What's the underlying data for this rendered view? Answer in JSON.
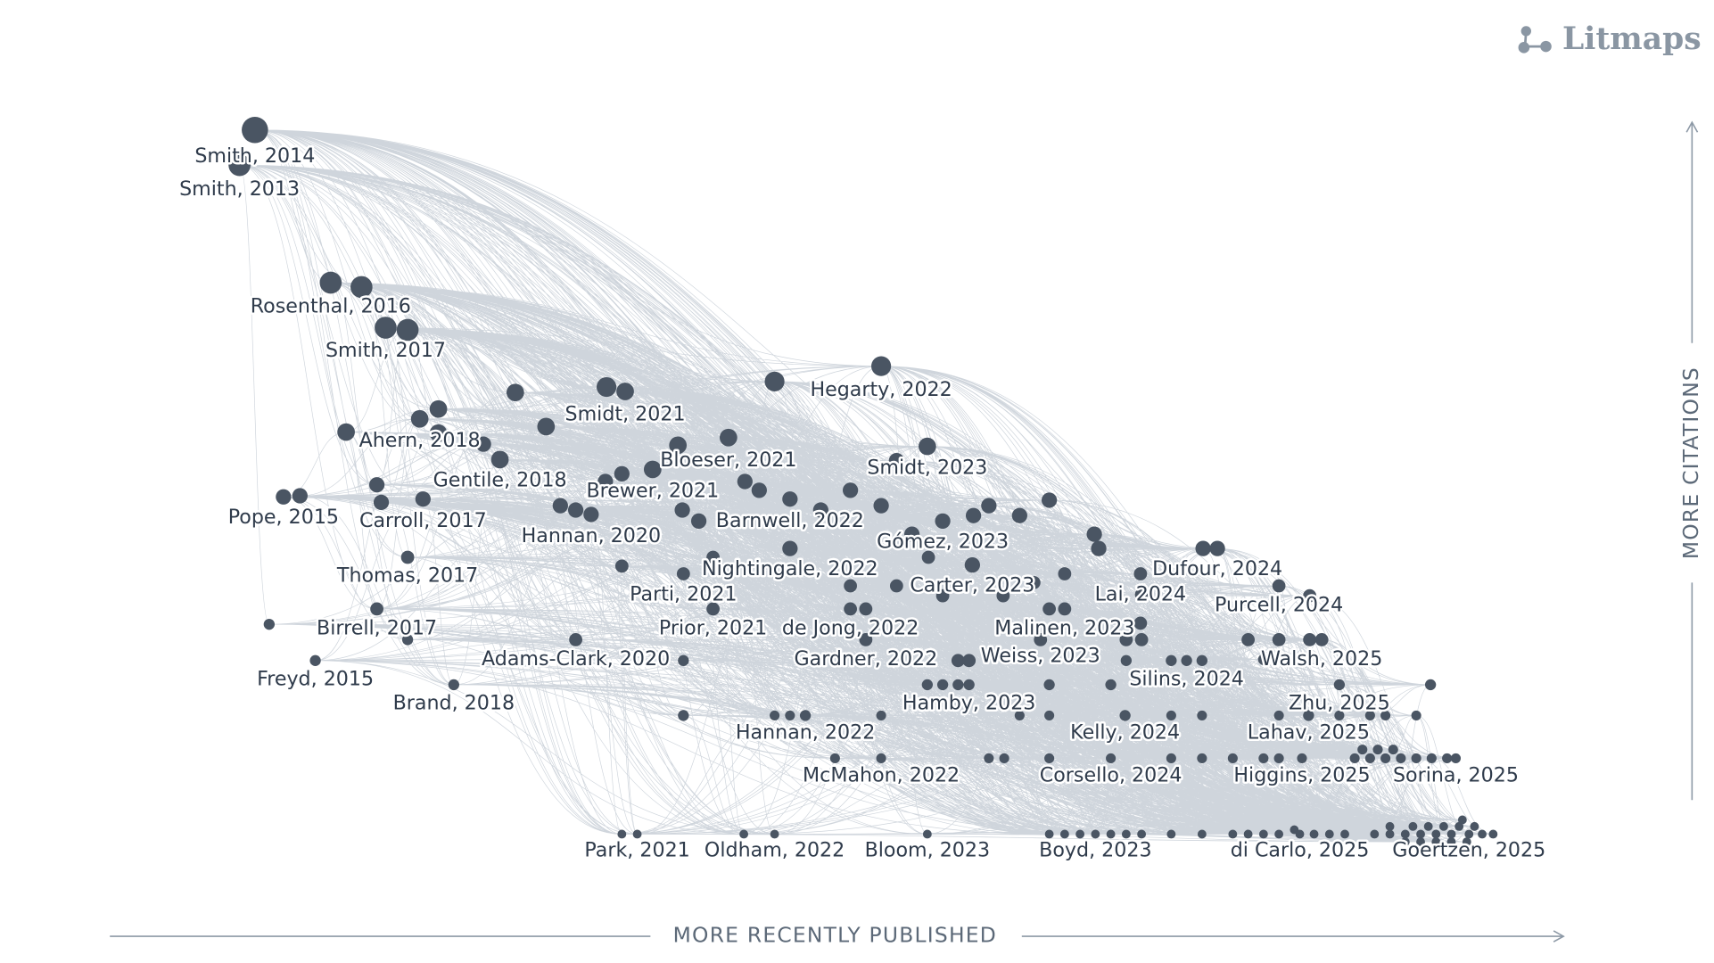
{
  "brand": "Litmaps",
  "x_axis_label": "MORE RECENTLY PUBLISHED",
  "y_axis_label": "MORE CITATIONS",
  "nodes": [
    {
      "label": "Smith, 2014"
    },
    {
      "label": "Smith, 2013"
    },
    {
      "label": "Rosenthal, 2016"
    },
    {
      "label": "Smith, 2017"
    },
    {
      "label": "Hegarty, 2022"
    },
    {
      "label": "Smidt, 2021"
    },
    {
      "label": "Ahern, 2018"
    },
    {
      "label": "Gentile, 2018"
    },
    {
      "label": "Bloeser, 2021"
    },
    {
      "label": "Smidt, 2023"
    },
    {
      "label": "Brewer, 2021"
    },
    {
      "label": "Pope, 2015"
    },
    {
      "label": "Carroll, 2017"
    },
    {
      "label": "Barnwell, 2022"
    },
    {
      "label": "Hannan, 2020"
    },
    {
      "label": "Gómez, 2023"
    },
    {
      "label": "Thomas, 2017"
    },
    {
      "label": "Nightingale, 2022"
    },
    {
      "label": "Dufour, 2024"
    },
    {
      "label": "Carter, 2023"
    },
    {
      "label": "Parti, 2021"
    },
    {
      "label": "Lai, 2024"
    },
    {
      "label": "Purcell, 2024"
    },
    {
      "label": "Birrell, 2017"
    },
    {
      "label": "Prior, 2021"
    },
    {
      "label": "de Jong, 2022"
    },
    {
      "label": "Malinen, 2023"
    },
    {
      "label": "Freyd, 2015"
    },
    {
      "label": "Adams-Clark, 2020"
    },
    {
      "label": "Gardner, 2022"
    },
    {
      "label": "Weiss, 2023"
    },
    {
      "label": "Walsh, 2025"
    },
    {
      "label": "Silins, 2024"
    },
    {
      "label": "Brand, 2018"
    },
    {
      "label": "Hamby, 2023"
    },
    {
      "label": "Zhu, 2025"
    },
    {
      "label": "Hannan, 2022"
    },
    {
      "label": "Kelly, 2024"
    },
    {
      "label": "Lahav, 2025"
    },
    {
      "label": "McMahon, 2022"
    },
    {
      "label": "Corsello, 2024"
    },
    {
      "label": "Higgins, 2025"
    },
    {
      "label": "Sorina, 2025"
    },
    {
      "label": "Park, 2021"
    },
    {
      "label": "Oldham, 2022"
    },
    {
      "label": "Bloom, 2023"
    },
    {
      "label": "Boyd, 2023"
    },
    {
      "label": "di Carlo, 2025"
    },
    {
      "label": "Goertzen, 2025"
    }
  ]
}
